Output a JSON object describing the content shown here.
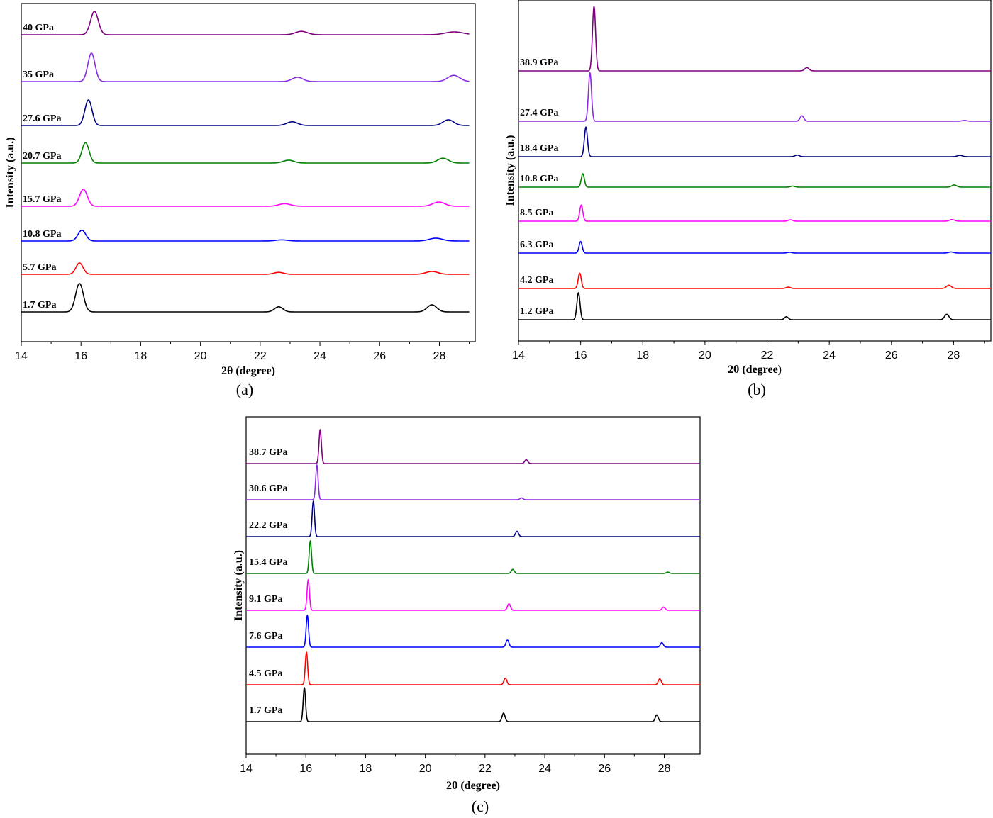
{
  "chart_data": [
    {
      "type": "line",
      "caption": "(a)",
      "xlabel": "2θ (degree)",
      "ylabel": "Intensity (a.u.)",
      "xlim": [
        14,
        29.2
      ],
      "xticks": [
        "14",
        "16",
        "18",
        "20",
        "22",
        "24",
        "26",
        "28"
      ],
      "grid": false,
      "legend": "inline labels left of each trace",
      "peak_model": "gaussian",
      "series": [
        {
          "name": "1.7 GPa",
          "color": "#000000",
          "peaks": [
            {
              "x": 15.95,
              "height": 1.0,
              "width": 0.13
            },
            {
              "x": 22.62,
              "height": 0.18,
              "width": 0.14
            },
            {
              "x": 27.75,
              "height": 0.25,
              "width": 0.16
            }
          ]
        },
        {
          "name": "5.7 GPa",
          "color": "#ff0000",
          "peaks": [
            {
              "x": 15.95,
              "height": 0.4,
              "width": 0.12
            },
            {
              "x": 22.62,
              "height": 0.07,
              "width": 0.16
            },
            {
              "x": 27.75,
              "height": 0.1,
              "width": 0.2
            }
          ]
        },
        {
          "name": "10.8 GPa",
          "color": "#0000ff",
          "peaks": [
            {
              "x": 16.03,
              "height": 0.38,
              "width": 0.13
            },
            {
              "x": 22.72,
              "height": 0.04,
              "width": 0.2
            },
            {
              "x": 27.88,
              "height": 0.1,
              "width": 0.22
            }
          ]
        },
        {
          "name": "15.7 GPa",
          "color": "#ff00ff",
          "peaks": [
            {
              "x": 16.08,
              "height": 0.6,
              "width": 0.13
            },
            {
              "x": 22.82,
              "height": 0.09,
              "width": 0.2
            },
            {
              "x": 27.98,
              "height": 0.15,
              "width": 0.2
            }
          ]
        },
        {
          "name": "20.7 GPa",
          "color": "#008000",
          "peaks": [
            {
              "x": 16.15,
              "height": 0.72,
              "width": 0.12
            },
            {
              "x": 22.95,
              "height": 0.1,
              "width": 0.18
            },
            {
              "x": 28.12,
              "height": 0.17,
              "width": 0.18
            }
          ]
        },
        {
          "name": "27.6 GPa",
          "color": "#000080",
          "peaks": [
            {
              "x": 16.25,
              "height": 0.9,
              "width": 0.12
            },
            {
              "x": 23.07,
              "height": 0.13,
              "width": 0.18
            },
            {
              "x": 28.3,
              "height": 0.2,
              "width": 0.18
            }
          ]
        },
        {
          "name": "35 GPa",
          "color": "#8a2be2",
          "peaks": [
            {
              "x": 16.35,
              "height": 1.0,
              "width": 0.12
            },
            {
              "x": 23.25,
              "height": 0.15,
              "width": 0.18
            },
            {
              "x": 28.48,
              "height": 0.22,
              "width": 0.2
            }
          ]
        },
        {
          "name": "40 GPa",
          "color": "#800080",
          "peaks": [
            {
              "x": 16.45,
              "height": 0.82,
              "width": 0.13
            },
            {
              "x": 23.38,
              "height": 0.12,
              "width": 0.2
            },
            {
              "x": 28.5,
              "height": 0.1,
              "width": 0.3
            }
          ]
        }
      ]
    },
    {
      "type": "line",
      "caption": "(b)",
      "xlabel": "2θ (degree)",
      "ylabel": "Intensity (a.u.)",
      "xlim": [
        14,
        29.2
      ],
      "xticks": [
        "14",
        "16",
        "18",
        "20",
        "22",
        "24",
        "26",
        "28"
      ],
      "grid": false,
      "legend": "inline labels left of each trace",
      "peak_model": "gaussian",
      "series": [
        {
          "name": "1.2 GPa",
          "color": "#000000",
          "peaks": [
            {
              "x": 15.93,
              "height": 1.0,
              "width": 0.05
            },
            {
              "x": 22.62,
              "height": 0.11,
              "width": 0.06
            },
            {
              "x": 27.78,
              "height": 0.2,
              "width": 0.07
            }
          ]
        },
        {
          "name": "4.2 GPa",
          "color": "#ff0000",
          "peaks": [
            {
              "x": 15.97,
              "height": 0.57,
              "width": 0.05
            },
            {
              "x": 22.68,
              "height": 0.05,
              "width": 0.07
            },
            {
              "x": 27.85,
              "height": 0.12,
              "width": 0.08
            }
          ]
        },
        {
          "name": "6.3 GPa",
          "color": "#0000ff",
          "peaks": [
            {
              "x": 16.0,
              "height": 0.43,
              "width": 0.05
            },
            {
              "x": 22.72,
              "height": 0.03,
              "width": 0.07
            },
            {
              "x": 27.92,
              "height": 0.04,
              "width": 0.08
            }
          ]
        },
        {
          "name": "8.5 GPa",
          "color": "#ff00ff",
          "peaks": [
            {
              "x": 16.02,
              "height": 0.6,
              "width": 0.05
            },
            {
              "x": 22.75,
              "height": 0.05,
              "width": 0.07
            },
            {
              "x": 27.95,
              "height": 0.06,
              "width": 0.08
            }
          ]
        },
        {
          "name": "10.8 GPa",
          "color": "#008000",
          "peaks": [
            {
              "x": 16.07,
              "height": 0.5,
              "width": 0.05
            },
            {
              "x": 22.82,
              "height": 0.04,
              "width": 0.07
            },
            {
              "x": 28.02,
              "height": 0.08,
              "width": 0.08
            }
          ]
        },
        {
          "name": "18.4 GPa",
          "color": "#000080",
          "peaks": [
            {
              "x": 16.17,
              "height": 1.1,
              "width": 0.05
            },
            {
              "x": 22.97,
              "height": 0.06,
              "width": 0.07
            },
            {
              "x": 28.2,
              "height": 0.05,
              "width": 0.08
            }
          ]
        },
        {
          "name": "27.4 GPa",
          "color": "#8a2be2",
          "peaks": [
            {
              "x": 16.3,
              "height": 1.8,
              "width": 0.05
            },
            {
              "x": 23.12,
              "height": 0.2,
              "width": 0.06
            },
            {
              "x": 28.35,
              "height": 0.03,
              "width": 0.08
            }
          ]
        },
        {
          "name": "38.9 GPa",
          "color": "#800080",
          "peaks": [
            {
              "x": 16.43,
              "height": 2.4,
              "width": 0.05
            },
            {
              "x": 23.28,
              "height": 0.12,
              "width": 0.07
            }
          ]
        }
      ]
    },
    {
      "type": "line",
      "caption": "(c)",
      "xlabel": "2θ (degree)",
      "ylabel": "Intensity (a.u.)",
      "xlim": [
        14,
        29.2
      ],
      "xticks": [
        "14",
        "16",
        "18",
        "20",
        "22",
        "24",
        "26",
        "28"
      ],
      "grid": false,
      "legend": "inline labels left of each trace",
      "peak_model": "gaussian",
      "series": [
        {
          "name": "1.7 GPa",
          "color": "#000000",
          "peaks": [
            {
              "x": 15.95,
              "height": 1.0,
              "width": 0.04
            },
            {
              "x": 22.62,
              "height": 0.25,
              "width": 0.05
            },
            {
              "x": 27.75,
              "height": 0.2,
              "width": 0.05
            }
          ]
        },
        {
          "name": "4.5 GPa",
          "color": "#ff0000",
          "peaks": [
            {
              "x": 16.02,
              "height": 1.0,
              "width": 0.04
            },
            {
              "x": 22.68,
              "height": 0.2,
              "width": 0.05
            },
            {
              "x": 27.85,
              "height": 0.18,
              "width": 0.05
            }
          ]
        },
        {
          "name": "7.6 GPa",
          "color": "#0000ff",
          "peaks": [
            {
              "x": 16.05,
              "height": 0.98,
              "width": 0.04
            },
            {
              "x": 22.75,
              "height": 0.22,
              "width": 0.05
            },
            {
              "x": 27.92,
              "height": 0.14,
              "width": 0.05
            }
          ]
        },
        {
          "name": "9.1 GPa",
          "color": "#ff00ff",
          "peaks": [
            {
              "x": 16.08,
              "height": 0.94,
              "width": 0.04
            },
            {
              "x": 22.8,
              "height": 0.2,
              "width": 0.05
            },
            {
              "x": 27.98,
              "height": 0.1,
              "width": 0.05
            }
          ]
        },
        {
          "name": "15.4 GPa",
          "color": "#008000",
          "peaks": [
            {
              "x": 16.15,
              "height": 0.96,
              "width": 0.04
            },
            {
              "x": 22.93,
              "height": 0.12,
              "width": 0.05
            },
            {
              "x": 28.12,
              "height": 0.04,
              "width": 0.05
            }
          ]
        },
        {
          "name": "22.2 GPa",
          "color": "#000080",
          "peaks": [
            {
              "x": 16.25,
              "height": 1.0,
              "width": 0.04
            },
            {
              "x": 23.07,
              "height": 0.15,
              "width": 0.05
            }
          ]
        },
        {
          "name": "30.6 GPa",
          "color": "#8a2be2",
          "peaks": [
            {
              "x": 16.37,
              "height": 0.98,
              "width": 0.04
            },
            {
              "x": 23.22,
              "height": 0.05,
              "width": 0.05
            }
          ]
        },
        {
          "name": "38.7 GPa",
          "color": "#800080",
          "peaks": [
            {
              "x": 16.48,
              "height": 0.96,
              "width": 0.04
            },
            {
              "x": 23.38,
              "height": 0.11,
              "width": 0.05
            }
          ]
        }
      ]
    }
  ]
}
